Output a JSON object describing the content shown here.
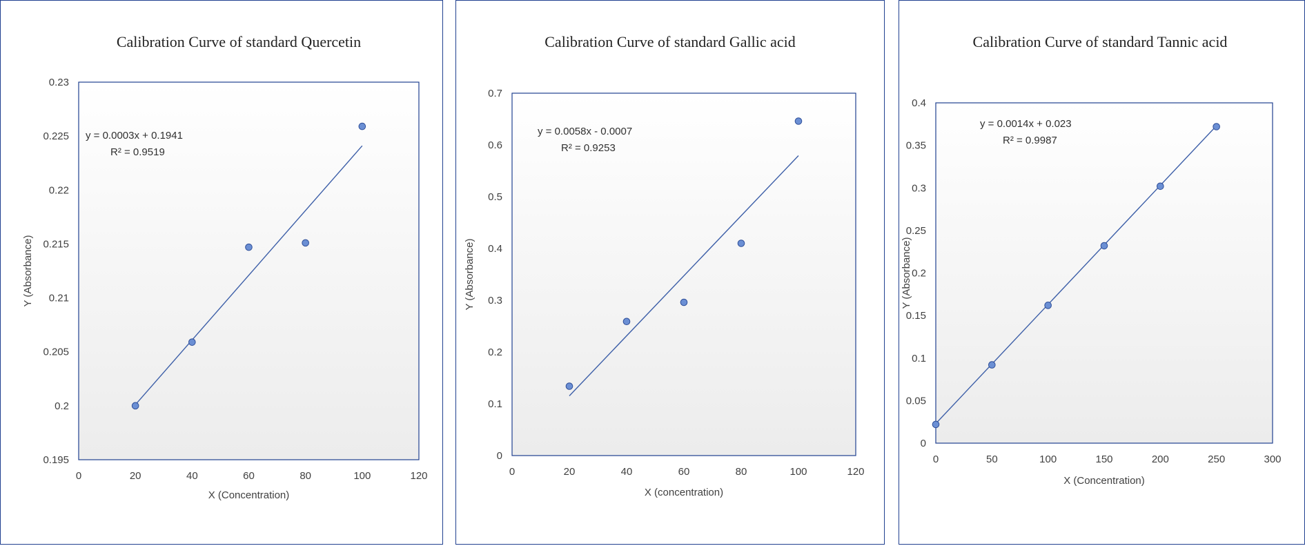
{
  "chart_data": [
    {
      "type": "scatter",
      "title": "Calibration Curve of standard Quercetin",
      "xlabel": "X (Concentration)",
      "ylabel": "Y (Absorbance)",
      "xlim": [
        0,
        120
      ],
      "ylim": [
        0.195,
        0.23
      ],
      "xticks": [
        0,
        20,
        40,
        60,
        80,
        100,
        120
      ],
      "yticks": [
        0.195,
        0.2,
        0.205,
        0.21,
        0.215,
        0.22,
        0.225,
        0.23
      ],
      "xtick_labels": [
        "0",
        "20",
        "40",
        "60",
        "80",
        "100",
        "120"
      ],
      "ytick_labels": [
        "0.195",
        "0.2",
        "0.205",
        "0.21",
        "0.215",
        "0.22",
        "0.225",
        "0.23"
      ],
      "x": [
        20,
        40,
        60,
        80,
        100
      ],
      "y": [
        0.2,
        0.2059,
        0.2147,
        0.2151,
        0.2259
      ],
      "trendline": {
        "slope": 0.0003,
        "intercept": 0.1941,
        "x_range": [
          20,
          100
        ]
      },
      "equation": "y = 0.0003x + 0.1941",
      "r2": "R² = 0.9519",
      "grid": false,
      "marker_color": "#6b8fd4",
      "line_color": "#3d5fa8"
    },
    {
      "type": "scatter",
      "title": "Calibration Curve of standard Gallic acid",
      "xlabel": "X (concentration)",
      "ylabel": "Y (Absorbance)",
      "xlim": [
        0,
        120
      ],
      "ylim": [
        0,
        0.7
      ],
      "xticks": [
        0,
        20,
        40,
        60,
        80,
        100,
        120
      ],
      "yticks": [
        0,
        0.1,
        0.2,
        0.3,
        0.4,
        0.5,
        0.6,
        0.7
      ],
      "xtick_labels": [
        "0",
        "20",
        "40",
        "60",
        "80",
        "100",
        "120"
      ],
      "ytick_labels": [
        "0",
        "0.1",
        "0.2",
        "0.3",
        "0.4",
        "0.5",
        "0.6",
        "0.7"
      ],
      "x": [
        20,
        40,
        60,
        80,
        100
      ],
      "y": [
        0.134,
        0.259,
        0.296,
        0.41,
        0.646
      ],
      "trendline": {
        "slope": 0.0058,
        "intercept": -0.0007,
        "x_range": [
          20,
          100
        ]
      },
      "equation": "y = 0.0058x - 0.0007",
      "r2": "R² = 0.9253",
      "grid": false,
      "marker_color": "#6b8fd4",
      "line_color": "#3d5fa8"
    },
    {
      "type": "scatter",
      "title": "Calibration Curve of standard Tannic acid",
      "xlabel": "X (Concentration)",
      "ylabel": "Y (Absorbance)",
      "xlim": [
        0,
        300
      ],
      "ylim": [
        0,
        0.4
      ],
      "xticks": [
        0,
        50,
        100,
        150,
        200,
        250,
        300
      ],
      "yticks": [
        0,
        0.05,
        0.1,
        0.15,
        0.2,
        0.25,
        0.3,
        0.35,
        0.4
      ],
      "xtick_labels": [
        "0",
        "50",
        "100",
        "150",
        "200",
        "250",
        "300"
      ],
      "ytick_labels": [
        "0",
        "0.05",
        "0.1",
        "0.15",
        "0.2",
        "0.25",
        "0.3",
        "0.35",
        "0.4"
      ],
      "x": [
        0,
        50,
        100,
        150,
        200,
        250
      ],
      "y": [
        0.022,
        0.092,
        0.162,
        0.232,
        0.302,
        0.372
      ],
      "trendline": {
        "slope": 0.0014,
        "intercept": 0.023,
        "x_range": [
          0,
          250
        ]
      },
      "equation": "y = 0.0014x + 0.023",
      "r2": "R² = 0.9987",
      "grid": false,
      "marker_color": "#6b8fd4",
      "line_color": "#3d5fa8"
    }
  ]
}
